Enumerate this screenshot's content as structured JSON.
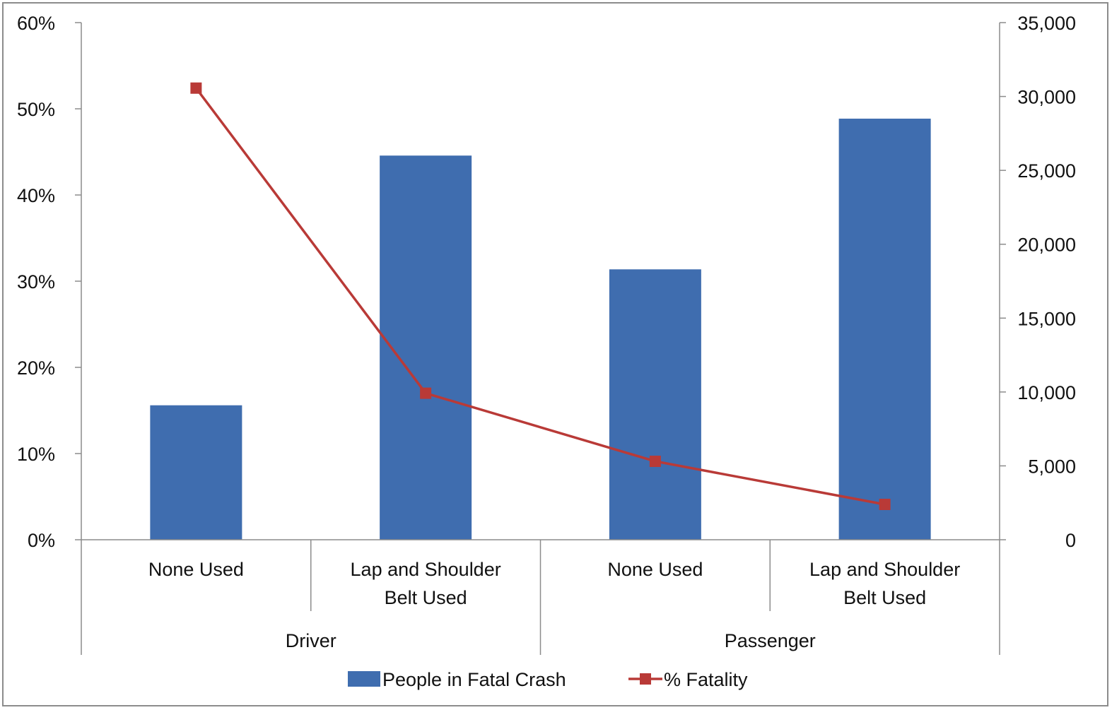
{
  "chart_data": {
    "type": "bar",
    "groups": [
      {
        "label": "Driver",
        "categories": [
          "None Used",
          "Lap and Shoulder Belt Used"
        ]
      },
      {
        "label": "Passenger",
        "categories": [
          "None Used",
          "Lap and Shoulder Belt Used"
        ]
      }
    ],
    "categories": [
      {
        "lines": [
          "None Used"
        ]
      },
      {
        "lines": [
          "Lap and Shoulder",
          "Belt Used"
        ]
      },
      {
        "lines": [
          "None Used"
        ]
      },
      {
        "lines": [
          "Lap and Shoulder",
          "Belt Used"
        ]
      }
    ],
    "series": [
      {
        "name": "People in Fatal Crash",
        "type": "bar",
        "axis": "right",
        "color": "#3f6daf",
        "values": [
          9100,
          26000,
          18300,
          28500
        ]
      },
      {
        "name": "% Fatality",
        "type": "line",
        "axis": "left",
        "color": "#b93a37",
        "values": [
          52.4,
          17.0,
          9.1,
          4.1
        ]
      }
    ],
    "y_left": {
      "min": 0,
      "max": 60,
      "step": 10,
      "format": "percent",
      "ticks": [
        "0%",
        "10%",
        "20%",
        "30%",
        "40%",
        "50%",
        "60%"
      ]
    },
    "y_right": {
      "min": 0,
      "max": 35000,
      "step": 5000,
      "ticks": [
        "0",
        "5,000",
        "10,000",
        "15,000",
        "20,000",
        "25,000",
        "30,000",
        "35,000"
      ]
    },
    "grid": false,
    "legend": {
      "position": "bottom",
      "entries": [
        "People in Fatal Crash",
        "% Fatality"
      ]
    }
  }
}
